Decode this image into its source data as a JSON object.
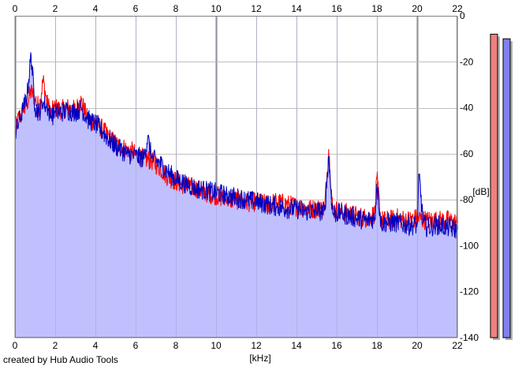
{
  "credit": "created by Hub Audio Tools",
  "chart_data": {
    "type": "line",
    "xlabel": "[kHz]",
    "ylabel": "[dB]",
    "xlim": [
      0,
      22
    ],
    "ylim": [
      -140,
      0
    ],
    "xticks": [
      0,
      2,
      4,
      6,
      8,
      10,
      12,
      14,
      16,
      18,
      20,
      22
    ],
    "yticks": [
      0,
      -20,
      -40,
      -60,
      -80,
      -100,
      -120,
      -140
    ],
    "grid": true,
    "fill_color": "#c0c0ff",
    "series": [
      {
        "color": "#ff0000",
        "x": [
          0,
          0.2,
          0.4,
          0.6,
          0.8,
          1.0,
          1.2,
          1.4,
          1.6,
          1.8,
          2.0,
          2.3,
          2.6,
          3.0,
          3.3,
          3.6,
          4.0,
          4.4,
          4.8,
          5.2,
          5.6,
          6.0,
          6.4,
          6.8,
          7.2,
          7.6,
          8.0,
          8.5,
          9.0,
          9.5,
          10.0,
          10.5,
          11.0,
          11.5,
          12.0,
          12.5,
          13.0,
          13.5,
          14.0,
          14.5,
          15.0,
          15.4,
          15.6,
          15.8,
          16.2,
          16.6,
          17.0,
          17.5,
          17.9,
          18.0,
          18.2,
          18.6,
          19.0,
          19.5,
          20.0,
          20.5,
          21.0,
          21.5,
          22.0
        ],
        "values": [
          -50,
          -44,
          -42,
          -38,
          -33,
          -36,
          -40,
          -28,
          -38,
          -42,
          -40,
          -41,
          -40,
          -41,
          -37,
          -45,
          -46,
          -50,
          -54,
          -57,
          -58,
          -60,
          -62,
          -63,
          -66,
          -70,
          -72,
          -74,
          -75,
          -77,
          -78,
          -80,
          -80,
          -81,
          -81,
          -82,
          -81,
          -82,
          -83,
          -84,
          -84,
          -84,
          -58,
          -84,
          -85,
          -86,
          -87,
          -88,
          -86,
          -70,
          -89,
          -89,
          -88,
          -89,
          -88,
          -89,
          -89,
          -89,
          -90
        ]
      },
      {
        "color": "#0000c0",
        "x": [
          0,
          0.2,
          0.4,
          0.6,
          0.8,
          1.0,
          1.2,
          1.4,
          1.6,
          1.8,
          2.0,
          2.3,
          2.6,
          3.0,
          3.3,
          3.6,
          4.0,
          4.4,
          4.8,
          5.2,
          5.6,
          6.0,
          6.4,
          6.6,
          6.8,
          7.2,
          7.6,
          8.0,
          8.5,
          9.0,
          9.5,
          10.0,
          10.5,
          11.0,
          11.5,
          12.0,
          12.5,
          13.0,
          13.5,
          14.0,
          14.5,
          15.0,
          15.4,
          15.6,
          15.8,
          16.2,
          16.6,
          17.0,
          17.5,
          17.9,
          18.0,
          18.2,
          18.6,
          19.0,
          19.5,
          20.0,
          20.1,
          20.3,
          20.5,
          21.0,
          21.5,
          22.0
        ],
        "values": [
          -52,
          -46,
          -41,
          -35,
          -17,
          -40,
          -42,
          -38,
          -40,
          -44,
          -42,
          -42,
          -41,
          -42,
          -40,
          -45,
          -47,
          -51,
          -55,
          -58,
          -60,
          -61,
          -62,
          -53,
          -62,
          -64,
          -68,
          -71,
          -73,
          -75,
          -76,
          -77,
          -78,
          -79,
          -80,
          -81,
          -82,
          -83,
          -84,
          -84,
          -85,
          -85,
          -85,
          -61,
          -86,
          -86,
          -87,
          -88,
          -89,
          -88,
          -73,
          -90,
          -90,
          -90,
          -91,
          -91,
          -69,
          -90,
          -92,
          -91,
          -92,
          -93
        ]
      }
    ],
    "level_meters": [
      {
        "color": "#f08080",
        "level_db": -8
      },
      {
        "color": "#8080f0",
        "level_db": -10
      }
    ]
  }
}
